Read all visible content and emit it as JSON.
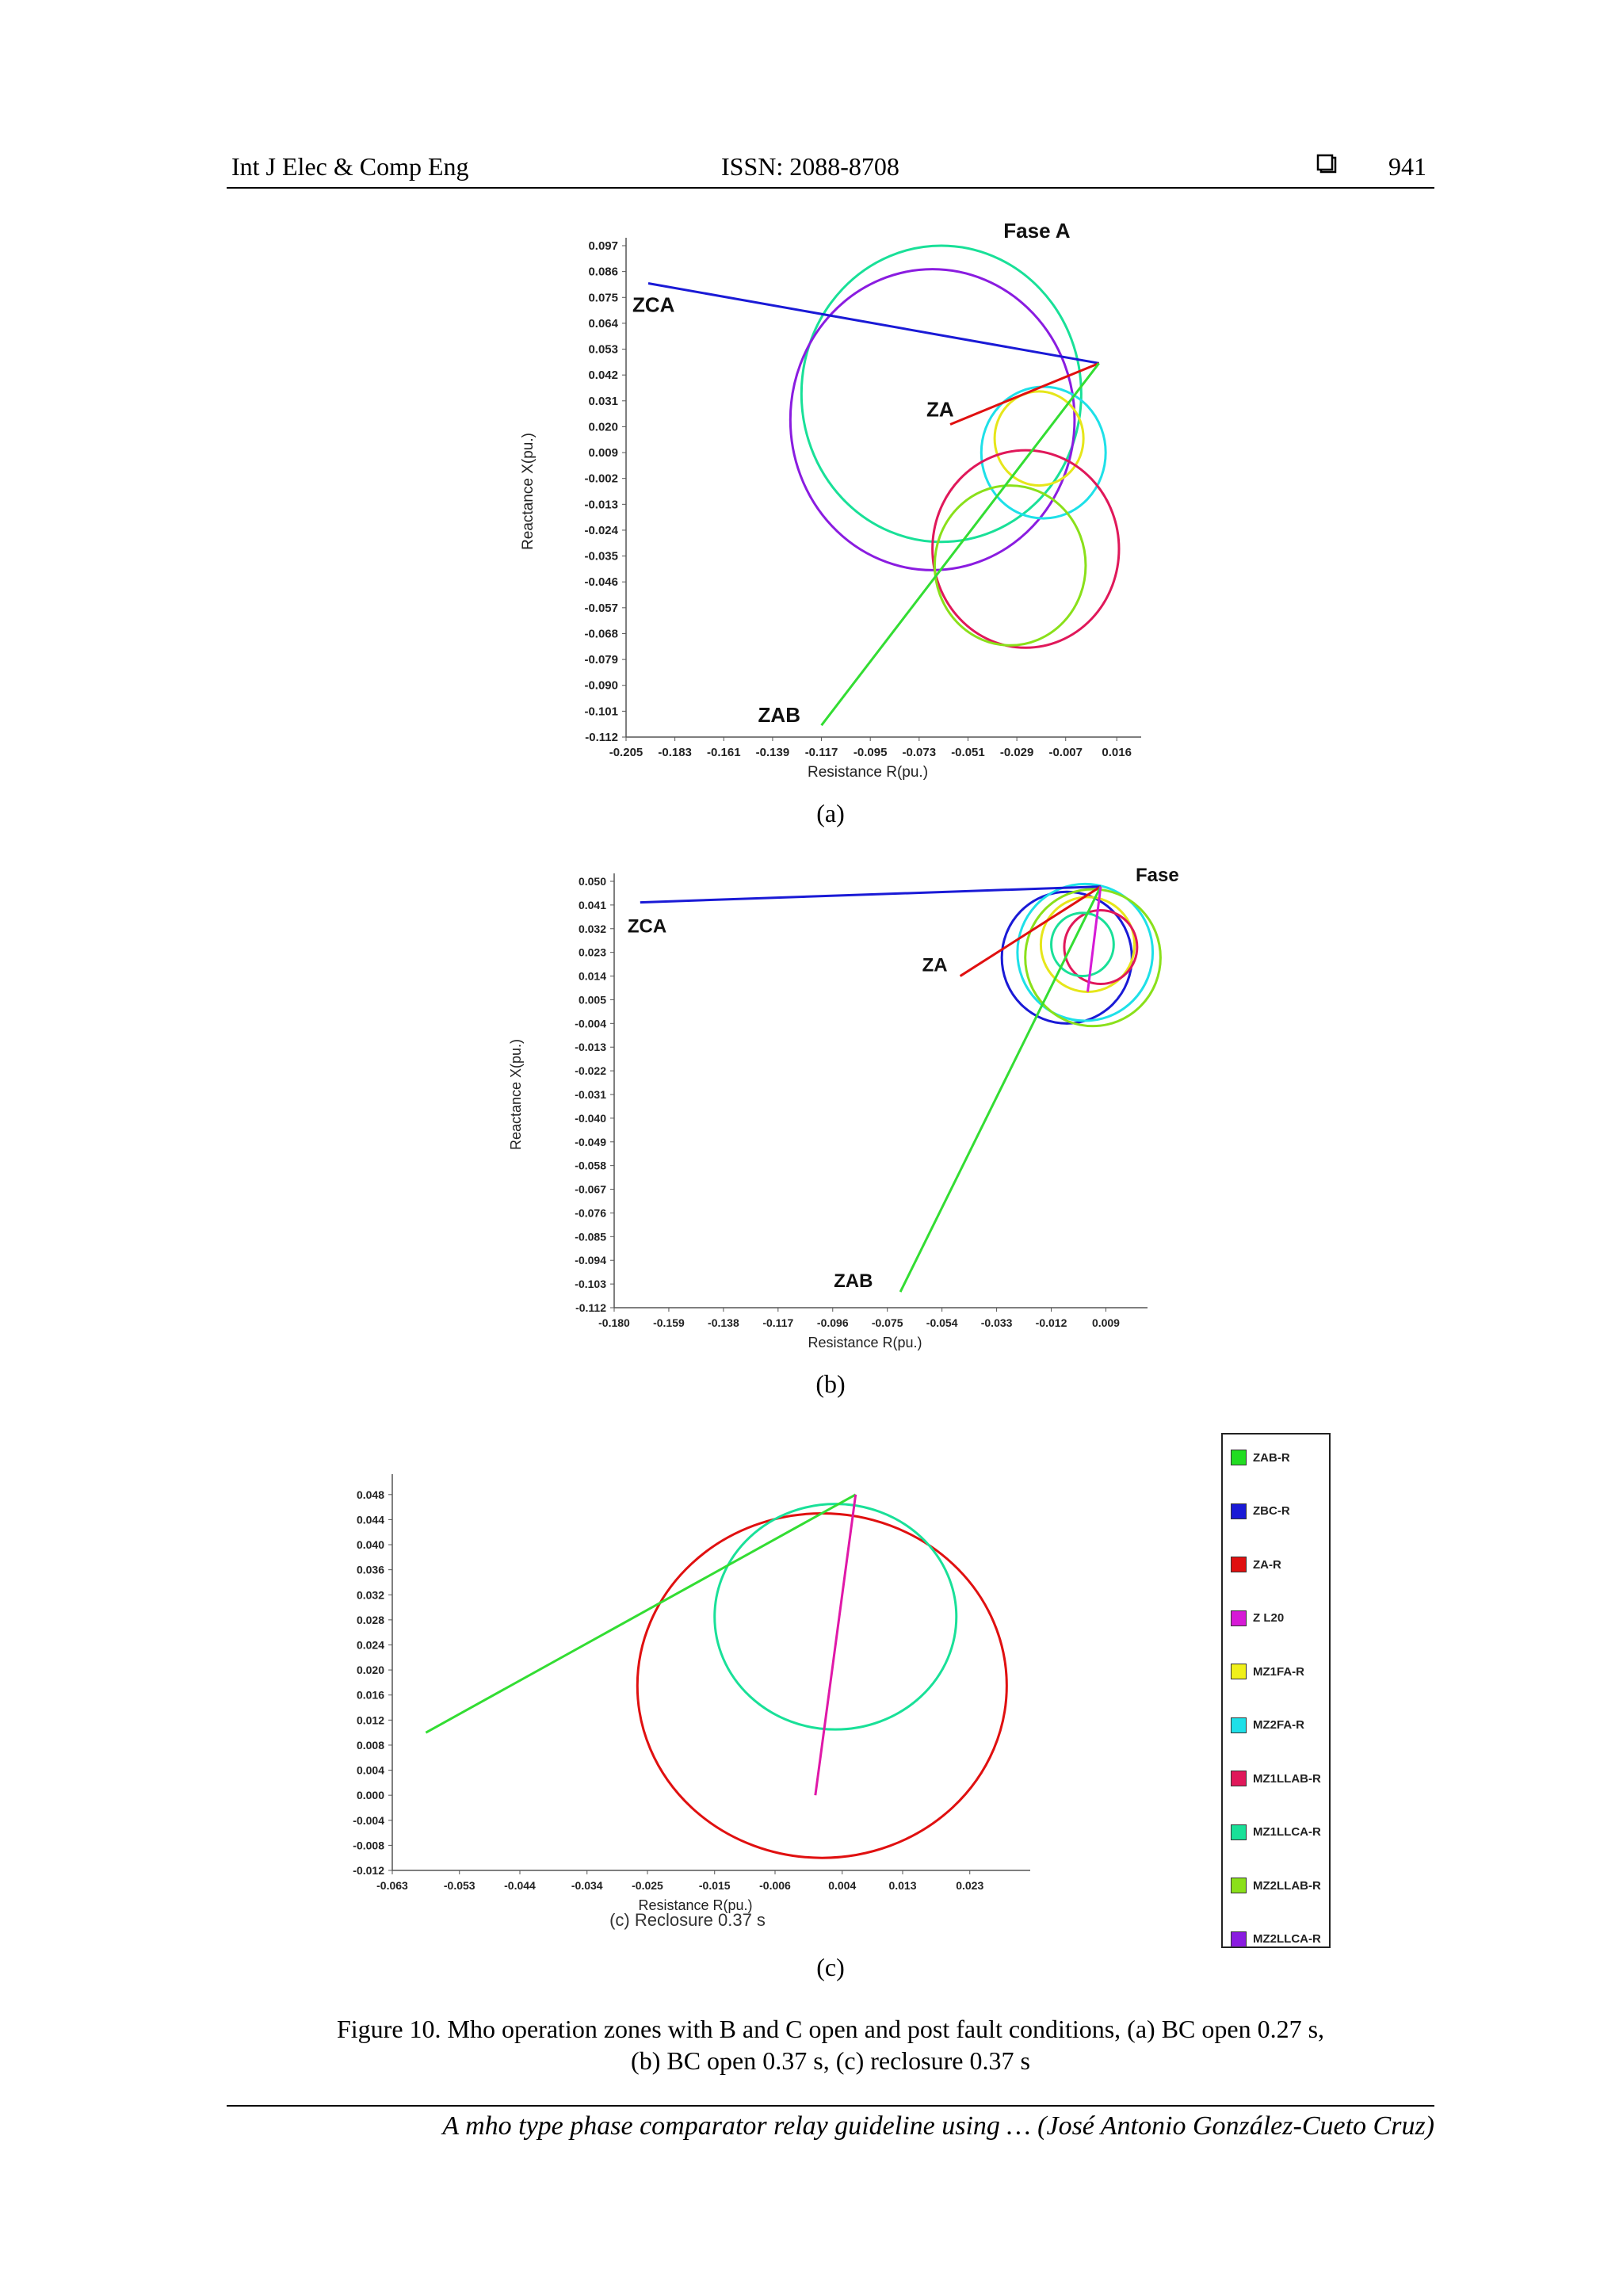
{
  "header": {
    "journal": "Int J Elec & Comp Eng",
    "issn": "ISSN: 2088-8708",
    "page_number": "941",
    "page_icon": "square-bullet-icon"
  },
  "footer": {
    "text": "A mho type phase comparator relay guideline using … (José Antonio González-Cueto Cruz)"
  },
  "figure": {
    "caption_line1": "Figure 10. Mho operation zones with B and C open and post fault conditions, (a) BC open 0.27 s,",
    "caption_line2": "(b) BC open 0.37 s, (c) reclosure 0.37 s"
  },
  "chart_data": [
    {
      "id": "a",
      "type": "line",
      "subcaption": "(a)",
      "xlabel": "Resistance R(pu.)",
      "ylabel": "Reactance X(pu.)",
      "xlim": [
        -0.205,
        0.027
      ],
      "ylim": [
        -0.112,
        0.097
      ],
      "xticks": [
        "-0.205",
        "-0.183",
        "-0.161",
        "-0.139",
        "-0.117",
        "-0.095",
        "-0.073",
        "-0.051",
        "-0.029",
        "-0.007",
        "0.016"
      ],
      "yticks": [
        "0.097",
        "0.086",
        "0.075",
        "0.064",
        "0.053",
        "0.042",
        "0.031",
        "0.020",
        "0.009",
        "-0.002",
        "-0.013",
        "-0.024",
        "-0.035",
        "-0.046",
        "-0.057",
        "-0.068",
        "-0.079",
        "-0.090",
        "-0.101",
        "-0.112"
      ],
      "origin": [
        0.008,
        0.047
      ],
      "segments": [
        {
          "name": "ZCA",
          "color": "#1a1ad6",
          "to": [
            -0.195,
            0.081
          ]
        },
        {
          "name": "ZA",
          "color": "#e01010",
          "to": [
            -0.059,
            0.021
          ]
        },
        {
          "name": "ZAB",
          "color": "#33dd33",
          "to": [
            -0.117,
            -0.107
          ]
        }
      ],
      "circles": [
        {
          "color": "#19e098",
          "center": [
            -0.063,
            0.034
          ],
          "radius": 0.063
        },
        {
          "color": "#8a1ce0",
          "center": [
            -0.067,
            0.023
          ],
          "radius": 0.064
        },
        {
          "color": "#e6e61a",
          "center": [
            -0.019,
            0.015
          ],
          "radius": 0.02
        },
        {
          "color": "#1ee0e8",
          "center": [
            -0.017,
            0.009
          ],
          "radius": 0.028
        },
        {
          "color": "#e0185a",
          "center": [
            -0.025,
            -0.032
          ],
          "radius": 0.042
        },
        {
          "color": "#8ae01a",
          "center": [
            -0.032,
            -0.039
          ],
          "radius": 0.034
        }
      ],
      "annotations": [
        {
          "text": "ZCA",
          "at": [
            -0.195,
            0.081
          ]
        },
        {
          "text": "ZA",
          "at": [
            -0.059,
            0.021
          ]
        },
        {
          "text": "ZAB",
          "at": [
            -0.117,
            -0.107
          ]
        },
        {
          "text": "Fase A",
          "at": [
            -0.035,
            0.095
          ]
        }
      ]
    },
    {
      "id": "b",
      "type": "line",
      "subcaption": "(b)",
      "xlabel": "Resistance R(pu.)",
      "ylabel": "Reactance X(pu.)",
      "xlim": [
        -0.18,
        0.025
      ],
      "ylim": [
        -0.112,
        0.05
      ],
      "xticks": [
        "-0.180",
        "-0.159",
        "-0.138",
        "-0.117",
        "-0.096",
        "-0.075",
        "-0.054",
        "-0.033",
        "-0.012",
        "0.009"
      ],
      "yticks": [
        "0.050",
        "0.041",
        "0.032",
        "0.023",
        "0.014",
        "0.005",
        "-0.004",
        "-0.013",
        "-0.022",
        "-0.031",
        "-0.040",
        "-0.049",
        "-0.058",
        "-0.067",
        "-0.076",
        "-0.085",
        "-0.094",
        "-0.103",
        "-0.112"
      ],
      "origin": [
        0.007,
        0.048
      ],
      "segments": [
        {
          "name": "ZCA",
          "color": "#1a1ad6",
          "to": [
            -0.17,
            0.042
          ]
        },
        {
          "name": "ZA",
          "color": "#e01010",
          "to": [
            -0.047,
            0.014
          ]
        },
        {
          "name": "ZAB",
          "color": "#33dd33",
          "to": [
            -0.07,
            -0.106
          ]
        },
        {
          "name": "ZL20",
          "color": "#d61ad6",
          "to": [
            0.002,
            0.008
          ]
        }
      ],
      "circles": [
        {
          "color": "#1a1ad6",
          "center": [
            -0.006,
            0.021
          ],
          "radius": 0.025
        },
        {
          "color": "#1ee0e8",
          "center": [
            0.001,
            0.023
          ],
          "radius": 0.026
        },
        {
          "color": "#8ae01a",
          "center": [
            0.004,
            0.021
          ],
          "radius": 0.026
        },
        {
          "color": "#e6e61a",
          "center": [
            0.002,
            0.026
          ],
          "radius": 0.018
        },
        {
          "color": "#e0185a",
          "center": [
            0.007,
            0.025
          ],
          "radius": 0.014
        },
        {
          "color": "#19e098",
          "center": [
            0.0,
            0.026
          ],
          "radius": 0.012
        }
      ],
      "annotations": [
        {
          "text": "ZCA",
          "at": [
            -0.17,
            0.042
          ]
        },
        {
          "text": "ZA",
          "at": [
            -0.047,
            0.014
          ]
        },
        {
          "text": "ZAB",
          "at": [
            -0.07,
            -0.106
          ]
        },
        {
          "text": "Fase A",
          "at": [
            0.018,
            0.05
          ]
        }
      ]
    },
    {
      "id": "c",
      "type": "line",
      "subcaption": "(c)",
      "inner_label": "(c) Reclosure 0.37 s",
      "xlabel": "Resistance R(pu.)",
      "ylabel": "Reactance X(pu.)",
      "xlim": [
        -0.063,
        0.032
      ],
      "ylim": [
        -0.012,
        0.05
      ],
      "xticks": [
        "-0.063",
        "-0.053",
        "-0.044",
        "-0.034",
        "-0.025",
        "-0.015",
        "-0.006",
        "0.004",
        "0.013",
        "0.023"
      ],
      "yticks": [
        "0.048",
        "0.044",
        "0.040",
        "0.036",
        "0.032",
        "0.028",
        "0.024",
        "0.020",
        "0.016",
        "0.012",
        "0.008",
        "0.004",
        "0.000",
        "-0.004",
        "-0.008",
        "-0.012"
      ],
      "segments": [
        {
          "name": "ZAB-R",
          "color": "#33dd33",
          "from": [
            -0.058,
            0.01
          ],
          "to": [
            0.006,
            0.048
          ]
        },
        {
          "name": "Z L20",
          "color": "#e018a8",
          "from": [
            -0.0,
            0.0
          ],
          "to": [
            0.006,
            0.048
          ]
        }
      ],
      "circles": [
        {
          "color": "#e01010",
          "center": [
            0.001,
            0.0175
          ],
          "radius": 0.0275
        },
        {
          "color": "#19e098",
          "center": [
            0.003,
            0.0285
          ],
          "radius": 0.018
        }
      ],
      "legend": [
        {
          "label": "ZAB-R",
          "color": "#22dd22"
        },
        {
          "label": "ZBC-R",
          "color": "#1a1ad6"
        },
        {
          "label": "ZA-R",
          "color": "#e01010"
        },
        {
          "label": "Z L20",
          "color": "#d61ad6"
        },
        {
          "label": "MZ1FA-R",
          "color": "#f0f01a"
        },
        {
          "label": "MZ2FA-R",
          "color": "#1ee0e8"
        },
        {
          "label": "MZ1LLAB-R",
          "color": "#e0185a"
        },
        {
          "label": "MZ1LLCA-R",
          "color": "#19e098"
        },
        {
          "label": "MZ2LLAB-R",
          "color": "#8ae01a"
        },
        {
          "label": "MZ2LLCA-R",
          "color": "#8a1ce0"
        }
      ]
    }
  ]
}
